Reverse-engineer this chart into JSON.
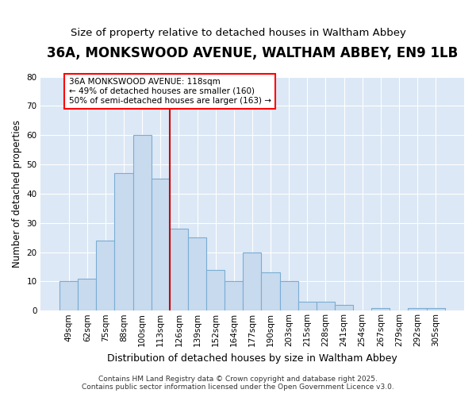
{
  "title": "36A, MONKSWOOD AVENUE, WALTHAM ABBEY, EN9 1LB",
  "subtitle": "Size of property relative to detached houses in Waltham Abbey",
  "xlabel": "Distribution of detached houses by size in Waltham Abbey",
  "ylabel": "Number of detached properties",
  "categories": [
    "49sqm",
    "62sqm",
    "75sqm",
    "88sqm",
    "100sqm",
    "113sqm",
    "126sqm",
    "139sqm",
    "152sqm",
    "164sqm",
    "177sqm",
    "190sqm",
    "203sqm",
    "215sqm",
    "228sqm",
    "241sqm",
    "254sqm",
    "267sqm",
    "279sqm",
    "292sqm",
    "305sqm"
  ],
  "values": [
    10,
    11,
    24,
    47,
    60,
    45,
    28,
    25,
    14,
    10,
    20,
    13,
    10,
    3,
    3,
    2,
    0,
    1,
    0,
    1,
    1
  ],
  "bar_color": "#c8daee",
  "bar_edge_color": "#7aadd4",
  "bar_edge_width": 0.8,
  "vline_color": "#cc0000",
  "vline_x": 5.5,
  "ylim": [
    0,
    80
  ],
  "yticks": [
    0,
    10,
    20,
    30,
    40,
    50,
    60,
    70,
    80
  ],
  "annotation_text": "36A MONKSWOOD AVENUE: 118sqm\n← 49% of detached houses are smaller (160)\n50% of semi-detached houses are larger (163) →",
  "footer1": "Contains HM Land Registry data © Crown copyright and database right 2025.",
  "footer2": "Contains public sector information licensed under the Open Government Licence v3.0.",
  "fig_bg_color": "#ffffff",
  "plot_bg_color": "#dce8f5",
  "grid_color": "#ffffff",
  "title_fontsize": 12,
  "subtitle_fontsize": 9.5,
  "tick_fontsize": 7.5,
  "ylabel_fontsize": 8.5,
  "xlabel_fontsize": 9,
  "footer_fontsize": 6.5,
  "annot_fontsize": 7.5
}
